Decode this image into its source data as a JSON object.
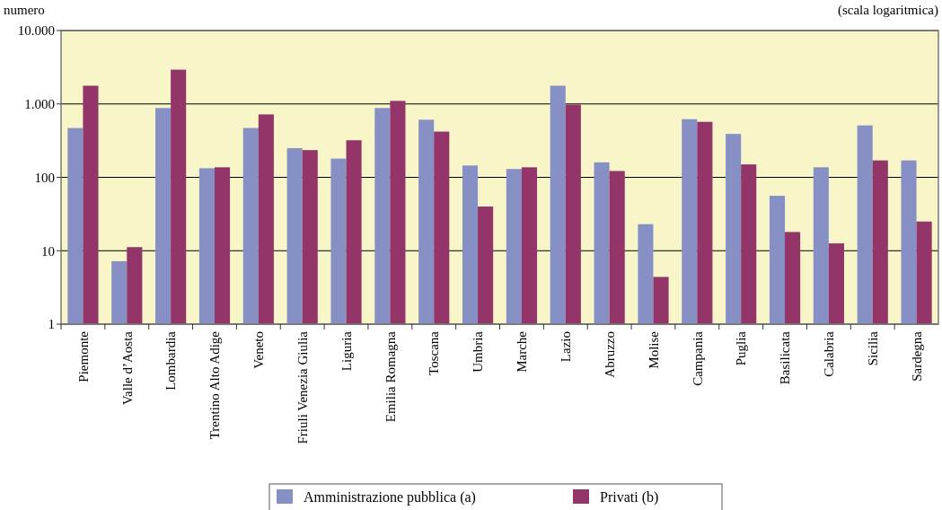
{
  "chart_data": {
    "type": "bar",
    "ylabel": "numero",
    "annotations": [
      "(scala logaritmica)"
    ],
    "categories": [
      "Piemonte",
      "Valle d’Aosta",
      "Lombardia",
      "Trentino Alto Adige",
      "Veneto",
      "Friuli Venezia Giulia",
      "Liguria",
      "Emilia Romagna",
      "Toscana",
      "Umbria",
      "Marche",
      "Lazio",
      "Abruzzo",
      "Molise",
      "Campania",
      "Puglia",
      "Basilicata",
      "Calabria",
      "Sicilia",
      "Sardegna"
    ],
    "series": [
      {
        "name": "Amministrazione pubblica (a)",
        "color": "#8690c4",
        "values": [
          470,
          7.2,
          880,
          133,
          470,
          250,
          180,
          880,
          610,
          145,
          130,
          1770,
          160,
          23,
          620,
          390,
          56,
          137,
          510,
          170
        ]
      },
      {
        "name": "Privati (b)",
        "color": "#943569",
        "values": [
          1770,
          11.2,
          2930,
          137,
          720,
          235,
          320,
          1100,
          420,
          40,
          137,
          980,
          122,
          4.4,
          570,
          150,
          18,
          12.6,
          170,
          25
        ]
      }
    ],
    "log": true,
    "ylim": [
      1,
      10000
    ],
    "yticks": [
      {
        "value": 1,
        "label": "1"
      },
      {
        "value": 10,
        "label": "10"
      },
      {
        "value": 100,
        "label": "100"
      },
      {
        "value": 1000,
        "label": "1.000"
      },
      {
        "value": 10000,
        "label": "10.000"
      }
    ],
    "grid": "y",
    "legend": "bottom"
  }
}
